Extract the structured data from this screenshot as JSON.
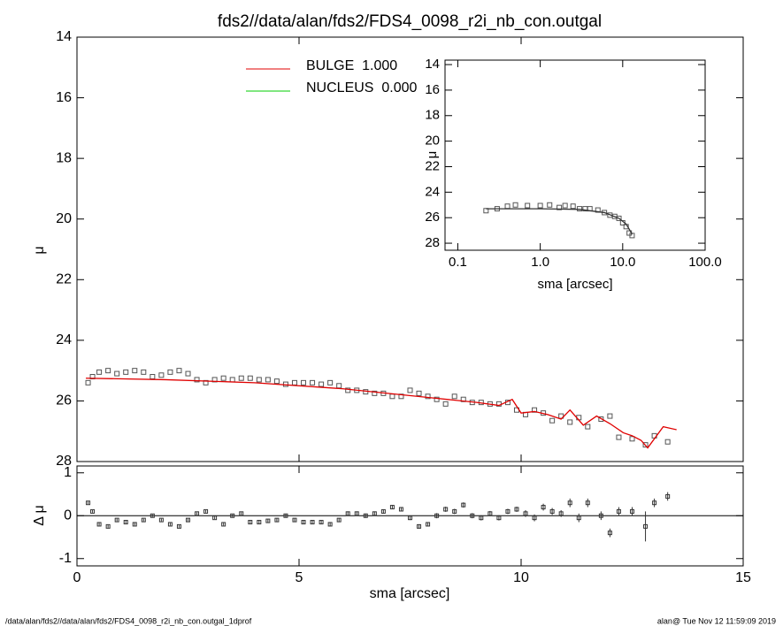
{
  "chart_data": [
    {
      "type": "scatter",
      "title": "fds2//data/alan/fds2/FDS4_0098_r2i_nb_con.outgal",
      "ylabel": "μ",
      "xlim": [
        0,
        15
      ],
      "xticks": [
        0,
        5,
        10,
        15
      ],
      "ylim": [
        28,
        14
      ],
      "yticks": [
        14,
        16,
        18,
        20,
        22,
        24,
        26,
        28
      ],
      "legend": "upper center",
      "series": [
        {
          "style": "points",
          "color": "#555555",
          "x": [
            0.25,
            0.35,
            0.5,
            0.7,
            0.9,
            1.1,
            1.3,
            1.5,
            1.7,
            1.9,
            2.1,
            2.3,
            2.5,
            2.7,
            2.9,
            3.1,
            3.3,
            3.5,
            3.7,
            3.9,
            4.1,
            4.3,
            4.5,
            4.7,
            4.9,
            5.1,
            5.3,
            5.5,
            5.7,
            5.9,
            6.1,
            6.3,
            6.5,
            6.7,
            6.9,
            7.1,
            7.3,
            7.5,
            7.7,
            7.9,
            8.1,
            8.3,
            8.5,
            8.7,
            8.9,
            9.1,
            9.3,
            9.5,
            9.7,
            9.9,
            10.1,
            10.3,
            10.5,
            10.7,
            10.9,
            11.1,
            11.3,
            11.5,
            11.8,
            12.0,
            12.2,
            12.5,
            12.8,
            13.0,
            13.3
          ],
          "values": [
            25.4,
            25.2,
            25.05,
            25.0,
            25.1,
            25.05,
            25.0,
            25.05,
            25.2,
            25.15,
            25.05,
            25.0,
            25.1,
            25.3,
            25.4,
            25.3,
            25.25,
            25.3,
            25.25,
            25.25,
            25.3,
            25.3,
            25.35,
            25.45,
            25.4,
            25.4,
            25.4,
            25.45,
            25.4,
            25.5,
            25.65,
            25.65,
            25.7,
            25.75,
            25.75,
            25.85,
            25.85,
            25.65,
            25.75,
            25.85,
            25.95,
            26.1,
            25.85,
            25.95,
            26.05,
            26.05,
            26.1,
            26.1,
            26.05,
            26.3,
            26.45,
            26.3,
            26.4,
            26.65,
            26.5,
            26.7,
            26.55,
            26.85,
            26.6,
            26.5,
            27.2,
            27.25,
            27.45,
            27.15,
            27.35
          ]
        },
        {
          "style": "line",
          "name": "BULGE  1.000",
          "color": "#e00000",
          "x": [
            0.2,
            2,
            4,
            6,
            7,
            8,
            9,
            9.5,
            9.8,
            10.0,
            10.3,
            10.6,
            10.9,
            11.1,
            11.4,
            11.7,
            12.0,
            12.3,
            12.5,
            12.7,
            12.85,
            13.2,
            13.5
          ],
          "values": [
            25.25,
            25.3,
            25.4,
            25.6,
            25.75,
            25.9,
            26.05,
            26.15,
            25.95,
            26.4,
            26.35,
            26.45,
            26.6,
            26.3,
            26.8,
            26.5,
            26.75,
            27.05,
            27.15,
            27.3,
            27.55,
            26.85,
            26.95
          ]
        },
        {
          "style": "line",
          "name": "NUCLEUS  0.000",
          "color": "#00cc00",
          "x": [],
          "values": []
        }
      ]
    },
    {
      "type": "errorbar",
      "ylabel": "Δ μ",
      "xlabel": "sma [arcsec]",
      "xlim": [
        0,
        15
      ],
      "xticks": [
        0,
        5,
        10,
        15
      ],
      "ylim": [
        -1.17,
        1.16
      ],
      "yticks": [
        -1,
        0,
        1
      ],
      "reference_line": 0,
      "series": [
        {
          "style": "errorbar",
          "color": "#333333",
          "x": [
            0.25,
            0.35,
            0.5,
            0.7,
            0.9,
            1.1,
            1.3,
            1.5,
            1.7,
            1.9,
            2.1,
            2.3,
            2.5,
            2.7,
            2.9,
            3.1,
            3.3,
            3.5,
            3.7,
            3.9,
            4.1,
            4.3,
            4.5,
            4.7,
            4.9,
            5.1,
            5.3,
            5.5,
            5.7,
            5.9,
            6.1,
            6.3,
            6.5,
            6.7,
            6.9,
            7.1,
            7.3,
            7.5,
            7.7,
            7.9,
            8.1,
            8.3,
            8.5,
            8.7,
            8.9,
            9.1,
            9.3,
            9.5,
            9.7,
            9.9,
            10.1,
            10.3,
            10.5,
            10.7,
            10.9,
            11.1,
            11.3,
            11.5,
            11.8,
            12.0,
            12.2,
            12.5,
            12.8,
            13.0,
            13.3
          ],
          "values": [
            0.3,
            0.1,
            -0.2,
            -0.25,
            -0.1,
            -0.15,
            -0.2,
            -0.1,
            0.0,
            -0.1,
            -0.2,
            -0.25,
            -0.1,
            0.05,
            0.1,
            -0.05,
            -0.2,
            0.0,
            0.05,
            -0.15,
            -0.15,
            -0.12,
            -0.1,
            0.0,
            -0.1,
            -0.15,
            -0.15,
            -0.15,
            -0.2,
            -0.1,
            0.05,
            0.05,
            0.0,
            0.05,
            0.1,
            0.2,
            0.15,
            -0.05,
            -0.25,
            -0.2,
            0.0,
            0.15,
            0.1,
            0.25,
            0.0,
            -0.05,
            0.05,
            -0.05,
            0.1,
            0.15,
            0.05,
            -0.05,
            0.2,
            0.1,
            0.05,
            0.3,
            -0.05,
            0.3,
            0.0,
            -0.4,
            0.1,
            0.1,
            -0.25,
            0.3,
            0.45
          ],
          "errors": [
            0.03,
            0.03,
            0.03,
            0.03,
            0.03,
            0.03,
            0.03,
            0.03,
            0.03,
            0.03,
            0.03,
            0.03,
            0.03,
            0.03,
            0.03,
            0.03,
            0.03,
            0.03,
            0.03,
            0.03,
            0.04,
            0.04,
            0.04,
            0.04,
            0.04,
            0.04,
            0.04,
            0.04,
            0.04,
            0.04,
            0.05,
            0.05,
            0.05,
            0.05,
            0.05,
            0.05,
            0.05,
            0.05,
            0.05,
            0.05,
            0.06,
            0.06,
            0.06,
            0.06,
            0.06,
            0.06,
            0.06,
            0.06,
            0.06,
            0.06,
            0.08,
            0.08,
            0.08,
            0.08,
            0.08,
            0.1,
            0.1,
            0.1,
            0.1,
            0.1,
            0.1,
            0.1,
            0.35,
            0.1,
            0.1
          ]
        }
      ]
    },
    {
      "type": "scatter",
      "ylabel": "μ",
      "xlabel": "sma [arcsec]",
      "xscale": "log",
      "xlim": [
        0.07,
        100
      ],
      "xticks": [
        0.1,
        {
          "value": 1,
          "label": "1.0"
        },
        {
          "value": 10,
          "label": "10.0"
        },
        {
          "value": 100,
          "label": "100.0"
        }
      ],
      "ylim": [
        28.55,
        13.65
      ],
      "yticks": [
        14,
        16,
        18,
        20,
        22,
        24,
        26,
        28
      ],
      "series": [
        {
          "style": "points",
          "color": "#555555",
          "x": [
            0.22,
            0.3,
            0.4,
            0.5,
            0.7,
            1.0,
            1.3,
            1.7,
            2.0,
            2.5,
            3.0,
            3.5,
            4,
            5,
            6,
            7,
            8,
            9,
            10,
            11,
            12,
            13
          ],
          "values": [
            25.45,
            25.3,
            25.1,
            25.0,
            25.05,
            25.05,
            25.0,
            25.2,
            25.05,
            25.1,
            25.3,
            25.3,
            25.3,
            25.4,
            25.6,
            25.8,
            25.9,
            26.05,
            26.4,
            26.7,
            27.2,
            27.4
          ]
        },
        {
          "style": "line",
          "color": "#333333",
          "x": [
            0.22,
            1,
            3,
            6,
            9,
            11,
            12,
            13
          ],
          "values": [
            25.3,
            25.3,
            25.35,
            25.6,
            26.05,
            26.5,
            26.9,
            27.3
          ]
        }
      ]
    }
  ],
  "footer": {
    "left": "/data/alan/fds2//data/alan/fds2/FDS4_0098_r2i_nb_con.outgal_1dprof",
    "right": "alan@  Tue Nov 12 11:59:09 2019"
  }
}
